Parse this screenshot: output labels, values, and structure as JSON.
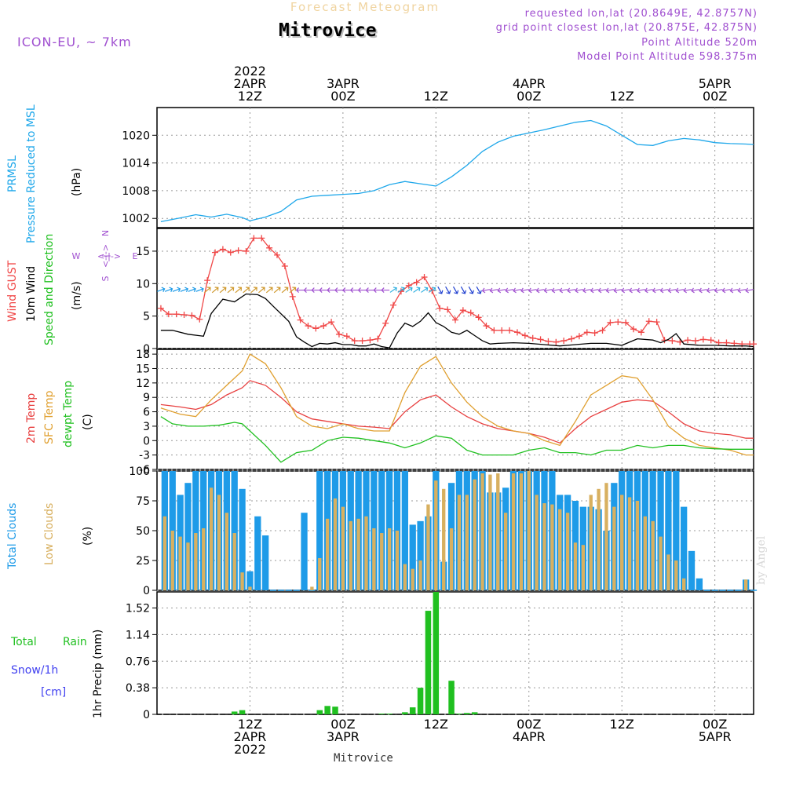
{
  "header": {
    "product_title": "Forecast Meteogram",
    "station": "Mitrovice",
    "model": "ICON-EU, ~ 7km",
    "requested_point": "requested lon,lat (20.8649E, 42.8757N)",
    "grid_point": "grid point closest lon,lat (20.875E, 42.875N)",
    "point_altitude": "Point Altitude 520m",
    "model_altitude": "Model Point Altitude 598.375m"
  },
  "watermark": "by Angel",
  "footer_station": "Mitrovice",
  "colors": {
    "pressure": "#1ea7ea",
    "gust": "#f04848",
    "wind": "#000000",
    "t2m": "#e84040",
    "sfc": "#e0a030",
    "dewpt": "#20c020",
    "total_clouds": "#1e9be8",
    "low_clouds": "#d8b060",
    "rain": "#20c020",
    "snow": "#4040f0",
    "purple": "#a050d0"
  },
  "time_axis": {
    "top_labels": [
      {
        "hour": 0,
        "lines": [
          "2022",
          "2APR",
          "12Z"
        ]
      },
      {
        "hour": 12,
        "lines": [
          "3APR",
          "00Z"
        ]
      },
      {
        "hour": 24,
        "lines": [
          "12Z"
        ]
      },
      {
        "hour": 36,
        "lines": [
          "4APR",
          "00Z"
        ]
      },
      {
        "hour": 48,
        "lines": [
          "12Z"
        ]
      },
      {
        "hour": 60,
        "lines": [
          "5APR",
          "00Z"
        ]
      }
    ],
    "bottom_labels": [
      {
        "hour": 0,
        "lines": [
          "12Z",
          "2APR",
          "2022"
        ]
      },
      {
        "hour": 12,
        "lines": [
          "00Z",
          "3APR"
        ]
      },
      {
        "hour": 24,
        "lines": [
          "12Z"
        ]
      },
      {
        "hour": 36,
        "lines": [
          "00Z",
          "4APR"
        ]
      },
      {
        "hour": 48,
        "lines": [
          "12Z"
        ]
      },
      {
        "hour": 60,
        "lines": [
          "00Z",
          "5APR"
        ]
      }
    ]
  },
  "panel_labels": {
    "pressure": {
      "name1": "PRMSL",
      "name2": "Pressure Reduced to MSL",
      "unit": "(hPa)"
    },
    "wind": {
      "gust": "Wind GUST",
      "wind10": "10m Wind",
      "speed_dir": "Speed and Direction",
      "unit": "(m/s)",
      "compass_w": "W",
      "compass_e": "E",
      "compass_n": "N",
      "compass_s": "S",
      "compass_arrow": "<-|->"
    },
    "temp": {
      "t2m": "2m Temp",
      "sfc": "SFC Temp",
      "dewpt": "dewpt Temp",
      "unit": "(C)"
    },
    "clouds": {
      "total": "Total Clouds",
      "low": "Low Clouds",
      "unit": "(%)"
    },
    "precip": {
      "rain_a": "Total",
      "rain_b": "Rain",
      "snow": "Snow/1h",
      "snow_unit": "[cm]",
      "axis": "1hr Precip (mm)"
    }
  },
  "chart_data": [
    {
      "type": "line",
      "title": "PRMSL Pressure Reduced to MSL",
      "ylabel": "(hPa)",
      "x_unit": "hours since 2APR 12Z",
      "ylim": [
        1000,
        1026
      ],
      "yticks": [
        "1002",
        "1008",
        "1014",
        "1020"
      ],
      "series": [
        {
          "name": "PRMSL",
          "x": [
            -11.5,
            -9,
            -7,
            -5,
            -3,
            -1,
            0,
            2,
            4,
            6,
            8,
            10,
            12,
            14,
            16,
            18,
            20,
            22,
            24,
            26,
            28,
            30,
            32,
            34,
            36,
            38,
            40,
            42,
            44,
            46,
            48,
            50,
            52,
            54,
            56,
            58,
            60,
            62,
            64,
            65
          ],
          "y": [
            1001.3,
            1002.1,
            1002.8,
            1002.3,
            1002.9,
            1002.2,
            1001.5,
            1002.3,
            1003.5,
            1006.0,
            1006.8,
            1007.0,
            1007.2,
            1007.4,
            1008.0,
            1009.3,
            1010.0,
            1009.5,
            1009.0,
            1011.0,
            1013.5,
            1016.5,
            1018.5,
            1019.8,
            1020.5,
            1021.2,
            1022.0,
            1022.8,
            1023.2,
            1022.0,
            1020.0,
            1018.0,
            1017.8,
            1018.8,
            1019.3,
            1019.0,
            1018.4,
            1018.2,
            1018.1,
            1018.0
          ]
        }
      ]
    },
    {
      "type": "line",
      "title": "Wind GUST / 10m Wind Speed and Direction",
      "ylabel": "(m/s)",
      "x_unit": "hours since 2APR 12Z",
      "ylim": [
        0,
        18.5
      ],
      "yticks": [
        "0",
        "5",
        "10",
        "15"
      ],
      "series": [
        {
          "name": "Wind GUST",
          "x": [
            -11.5,
            -10.5,
            -9.5,
            -8.5,
            -7.5,
            -6.5,
            -5.5,
            -4.5,
            -3.5,
            -2.5,
            -1.5,
            -0.5,
            0.5,
            1.5,
            2.5,
            3.5,
            4.5,
            5.5,
            6.5,
            7.5,
            8.5,
            9.5,
            10.5,
            11.5,
            12.5,
            13.5,
            14.5,
            15.5,
            16.5,
            17.5,
            18.5,
            19.5,
            20.5,
            21.5,
            22.5,
            23.5,
            24.5,
            25.5,
            26.5,
            27.5,
            28.5,
            29.5,
            30.5,
            31.5,
            32.5,
            33.5,
            34.5,
            35.5,
            36.5,
            37.5,
            38.5,
            39.5,
            40.5,
            41.5,
            42.5,
            43.5,
            44.5,
            45.5,
            46.5,
            47.5,
            48.5,
            49.5,
            50.5,
            51.5,
            52.5,
            53.5,
            54.5,
            55.5,
            56.5,
            57.5,
            58.5,
            59.5,
            60.5,
            61.5,
            62.5,
            63.5,
            64.5,
            65.0
          ],
          "y": [
            6.2,
            5.3,
            5.3,
            5.2,
            5.1,
            4.5,
            10.5,
            14.8,
            15.3,
            14.8,
            15.1,
            15.0,
            17.0,
            17.0,
            15.5,
            14.4,
            12.7,
            8.0,
            4.4,
            3.5,
            3.1,
            3.5,
            4.1,
            2.2,
            1.9,
            1.2,
            1.2,
            1.3,
            1.5,
            3.9,
            6.7,
            8.8,
            9.7,
            10.2,
            11.0,
            8.9,
            6.2,
            6.0,
            4.4,
            5.9,
            5.5,
            4.8,
            3.5,
            2.8,
            2.8,
            2.8,
            2.5,
            2.0,
            1.6,
            1.4,
            1.1,
            1.0,
            1.2,
            1.5,
            1.9,
            2.5,
            2.4,
            2.8,
            4.0,
            4.1,
            4.0,
            3.0,
            2.5,
            4.2,
            4.1,
            1.3,
            1.2,
            1.0,
            1.3,
            1.2,
            1.4,
            1.3,
            0.9,
            0.9,
            0.8,
            0.7,
            0.7,
            0.7
          ]
        },
        {
          "name": "10m Wind",
          "x": [
            -11.5,
            -10,
            -8,
            -6,
            -5,
            -3.5,
            -2,
            -0.5,
            1,
            2,
            3,
            5,
            6,
            7,
            8,
            9,
            10,
            11,
            12,
            13,
            14,
            15,
            16,
            17,
            18,
            19,
            20,
            21,
            22,
            23,
            24,
            25,
            26,
            27,
            28,
            29,
            30,
            31,
            32,
            34,
            36,
            38,
            40,
            42,
            44,
            46,
            48,
            50,
            52,
            53,
            54,
            55,
            56,
            58,
            60,
            62,
            64,
            65
          ],
          "y": [
            2.8,
            2.8,
            2.2,
            1.9,
            5.4,
            7.6,
            7.2,
            8.4,
            8.3,
            7.7,
            6.5,
            4.2,
            1.8,
            1.0,
            0.3,
            0.8,
            0.7,
            0.9,
            0.6,
            0.6,
            0.4,
            0.4,
            0.7,
            0.3,
            0.1,
            2.4,
            3.9,
            3.4,
            4.2,
            5.5,
            4.0,
            3.4,
            2.5,
            2.2,
            2.8,
            2.0,
            1.2,
            0.7,
            0.8,
            0.9,
            0.8,
            0.6,
            0.4,
            0.6,
            0.8,
            0.8,
            0.5,
            1.5,
            1.3,
            0.9,
            1.4,
            2.3,
            0.7,
            0.5,
            0.5,
            0.4,
            0.4,
            0.3
          ]
        }
      ]
    },
    {
      "type": "line",
      "title": "2m Temp / SFC Temp / dewpt Temp",
      "ylabel": "(C)",
      "x_unit": "hours since 2APR 12Z",
      "ylim": [
        -6,
        19
      ],
      "yticks": [
        "-6",
        "-3",
        "0",
        "3",
        "6",
        "9",
        "12",
        "15",
        "18"
      ],
      "series": [
        {
          "name": "2m Temp",
          "x": [
            -11.5,
            -9,
            -7,
            -5,
            -3,
            -1,
            0,
            2,
            4,
            6,
            8,
            10,
            12,
            14,
            16,
            18,
            20,
            22,
            24,
            26,
            28,
            30,
            32,
            34,
            36,
            38,
            40,
            42,
            44,
            46,
            48,
            50,
            52,
            54,
            56,
            58,
            60,
            62,
            64,
            65
          ],
          "y": [
            7.5,
            7.0,
            6.5,
            7.5,
            9.5,
            11.0,
            12.5,
            11.5,
            9.0,
            6.0,
            4.5,
            4.0,
            3.5,
            3.0,
            2.8,
            2.5,
            6.0,
            8.5,
            9.5,
            7.0,
            5.0,
            3.5,
            2.5,
            2.0,
            1.5,
            0.7,
            -0.5,
            2.5,
            5.0,
            6.5,
            8.0,
            8.5,
            8.2,
            6.0,
            3.5,
            2.0,
            1.5,
            1.2,
            0.5,
            0.5
          ]
        },
        {
          "name": "SFC Temp",
          "x": [
            -11.5,
            -9,
            -7,
            -5,
            -3,
            -1,
            0,
            2,
            4,
            6,
            8,
            10,
            12,
            14,
            16,
            18,
            20,
            22,
            24,
            26,
            28,
            30,
            32,
            34,
            36,
            38,
            40,
            42,
            44,
            46,
            48,
            50,
            52,
            54,
            56,
            58,
            60,
            62,
            64,
            65
          ],
          "y": [
            6.8,
            5.5,
            5.0,
            8.5,
            11.5,
            14.5,
            18.0,
            16.0,
            11.0,
            5.0,
            3.0,
            2.5,
            3.5,
            2.5,
            2.0,
            2.0,
            10.0,
            15.5,
            17.5,
            12.0,
            8.0,
            5.0,
            3.0,
            2.0,
            1.5,
            0.0,
            -1.0,
            4.0,
            9.5,
            11.5,
            13.5,
            13.0,
            8.5,
            3.0,
            0.5,
            -1.0,
            -1.5,
            -2.0,
            -3.0,
            -3.0
          ]
        },
        {
          "name": "dewpt Temp",
          "x": [
            -11.5,
            -10,
            -8,
            -6,
            -4,
            -2,
            -1,
            0,
            2,
            4,
            6,
            8,
            10,
            12,
            14,
            16,
            18,
            20,
            22,
            24,
            26,
            28,
            30,
            32,
            34,
            36,
            38,
            40,
            42,
            44,
            46,
            48,
            50,
            52,
            54,
            56,
            58,
            60,
            62,
            64,
            65
          ],
          "y": [
            5.0,
            3.5,
            3.0,
            3.0,
            3.2,
            3.8,
            3.5,
            2.0,
            -1.0,
            -4.5,
            -2.5,
            -2.0,
            0.0,
            0.7,
            0.5,
            0.0,
            -0.5,
            -1.5,
            -0.5,
            1.0,
            0.5,
            -2.0,
            -3.0,
            -3.0,
            -3.0,
            -2.0,
            -1.5,
            -2.5,
            -2.5,
            -3.0,
            -2.0,
            -2.0,
            -1.0,
            -1.5,
            -1.0,
            -1.0,
            -1.5,
            -1.7,
            -1.8,
            -1.8,
            -1.8
          ]
        }
      ]
    },
    {
      "type": "bar",
      "title": "Total Clouds / Low Clouds",
      "ylabel": "(%)",
      "x_unit": "hours since 2APR 12Z",
      "ylim": [
        0,
        100
      ],
      "yticks": [
        "0",
        "25",
        "50",
        "75",
        "100"
      ],
      "hours": [
        -11,
        -10,
        -9,
        -8,
        -7,
        -6,
        -5,
        -4,
        -3,
        -2,
        -1,
        0,
        1,
        2,
        3,
        4,
        5,
        6,
        7,
        8,
        9,
        10,
        11,
        12,
        13,
        14,
        15,
        16,
        17,
        18,
        19,
        20,
        21,
        22,
        23,
        24,
        25,
        26,
        27,
        28,
        29,
        30,
        31,
        32,
        33,
        34,
        35,
        36,
        37,
        38,
        39,
        40,
        41,
        42,
        43,
        44,
        45,
        46,
        47,
        48,
        49,
        50,
        51,
        52,
        53,
        54,
        55,
        56,
        57,
        58,
        59,
        60,
        61,
        62,
        63,
        64,
        65
      ],
      "series": [
        {
          "name": "Total Clouds",
          "values": [
            100,
            100,
            80,
            90,
            100,
            100,
            100,
            100,
            100,
            100,
            85,
            16,
            62,
            46,
            0,
            0,
            0,
            0,
            65,
            0,
            100,
            100,
            100,
            100,
            100,
            100,
            100,
            100,
            100,
            100,
            100,
            100,
            55,
            58,
            62,
            100,
            24,
            90,
            100,
            100,
            100,
            100,
            82,
            82,
            86,
            100,
            100,
            100,
            100,
            100,
            100,
            80,
            80,
            75,
            70,
            70,
            68,
            50,
            90,
            100,
            100,
            100,
            100,
            100,
            100,
            100,
            100,
            70,
            33,
            10,
            0,
            0,
            0,
            0,
            0,
            9,
            0
          ]
        },
        {
          "name": "Low Clouds",
          "values": [
            62,
            50,
            45,
            40,
            48,
            52,
            86,
            80,
            65,
            48,
            15,
            3,
            0,
            0,
            0,
            0,
            0,
            0,
            0,
            3,
            27,
            60,
            77,
            70,
            58,
            60,
            62,
            52,
            48,
            52,
            50,
            22,
            18,
            25,
            72,
            92,
            85,
            52,
            80,
            80,
            93,
            98,
            97,
            98,
            65,
            98,
            98,
            100,
            80,
            73,
            72,
            68,
            65,
            40,
            38,
            80,
            85,
            90,
            70,
            80,
            78,
            75,
            62,
            58,
            45,
            30,
            25,
            10,
            0,
            0,
            0,
            0,
            0,
            0,
            0,
            9,
            0
          ]
        }
      ]
    },
    {
      "type": "bar",
      "title": "1hr Precip",
      "ylabel": "1hr Precip (mm)",
      "x_unit": "hours since 2APR 12Z",
      "ylim": [
        0,
        1.75
      ],
      "yticks": [
        "0",
        "0.38",
        "0.76",
        "1.14",
        "1.52"
      ],
      "hours": [
        -2,
        -1,
        9,
        10,
        11,
        17,
        18,
        19,
        20,
        21,
        22,
        23,
        24,
        26,
        27,
        28,
        29
      ],
      "series": [
        {
          "name": "Total Rain",
          "values": [
            0.04,
            0.06,
            0.06,
            0.12,
            0.11,
            0.01,
            0.01,
            0.0,
            0.03,
            0.1,
            0.38,
            1.48,
            1.75,
            0.48,
            0.01,
            0.02,
            0.03
          ]
        },
        {
          "name": "Snow/1h",
          "values": [
            0,
            0,
            0,
            0,
            0,
            0,
            0,
            0,
            0,
            0,
            0,
            0,
            0,
            0,
            0,
            0,
            0
          ]
        }
      ]
    }
  ]
}
